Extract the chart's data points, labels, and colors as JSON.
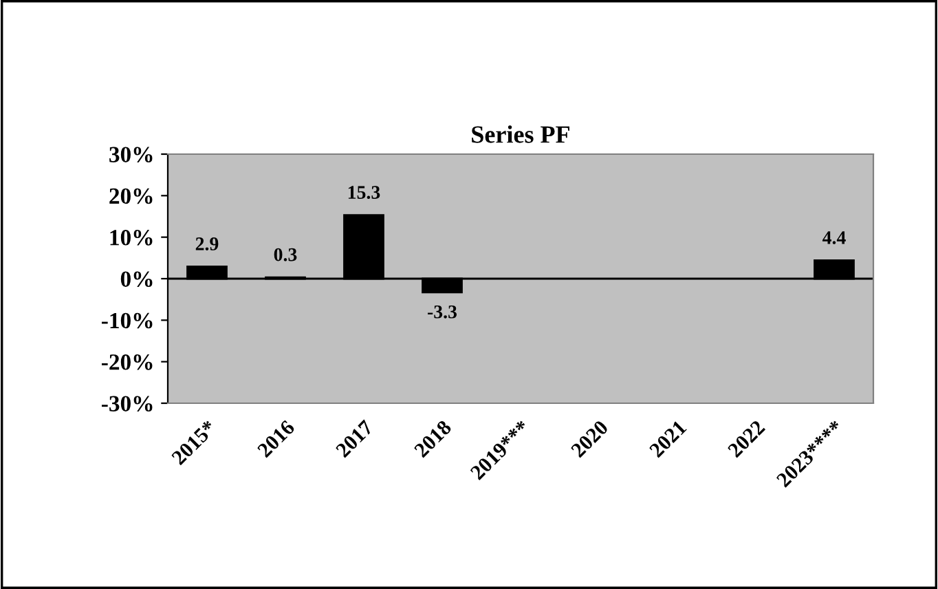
{
  "chart_data": {
    "type": "bar",
    "title": "Series PF",
    "categories": [
      "2015*",
      "2016",
      "2017",
      "2018",
      "2019***",
      "2020",
      "2021",
      "2022",
      "2023****"
    ],
    "values": [
      2.9,
      0.3,
      15.3,
      -3.3,
      null,
      null,
      null,
      null,
      4.4
    ],
    "color": "#000000",
    "data_labels": true,
    "ylim": [
      -30,
      30
    ],
    "yticks": [
      {
        "value": -30,
        "label": "-30%"
      },
      {
        "value": -20,
        "label": "-20%"
      },
      {
        "value": -10,
        "label": "-10%"
      },
      {
        "value": 0,
        "label": "0%"
      },
      {
        "value": 10,
        "label": "10%"
      },
      {
        "value": 20,
        "label": "20%"
      },
      {
        "value": 30,
        "label": "30%"
      }
    ],
    "legend": false
  }
}
